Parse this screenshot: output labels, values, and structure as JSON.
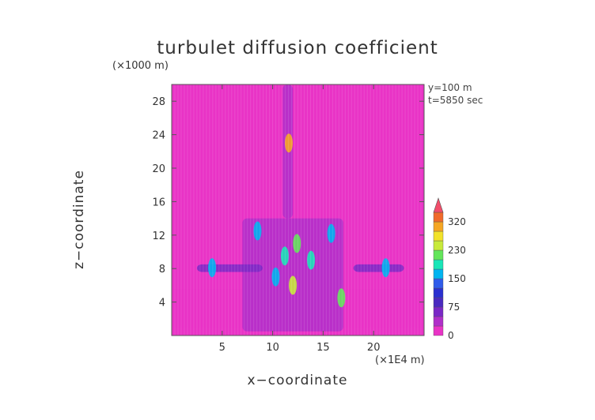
{
  "chart_data": {
    "type": "heatmap",
    "title": "turbulet diffusion coefficient",
    "xlabel": "x−coordinate",
    "ylabel": "z−coordinate",
    "x_unit": "(×1E4 m)",
    "y_unit": "(×1000 m)",
    "annotations": [
      "y=100 m",
      "t=5850 sec"
    ],
    "x_ticks": [
      5,
      10,
      15,
      20
    ],
    "y_ticks": [
      4,
      8,
      12,
      16,
      20,
      24,
      28
    ],
    "xlim": [
      0,
      25
    ],
    "ylim": [
      0,
      30
    ],
    "colorbar": {
      "tick_labels": [
        "0",
        "75",
        "150",
        "230",
        "320"
      ],
      "levels": [
        0,
        25,
        50,
        75,
        100,
        125,
        150,
        175,
        200,
        230,
        260,
        290,
        320,
        350
      ],
      "colors": [
        "#e933c6",
        "#b02fc9",
        "#7a28c6",
        "#4a2ac0",
        "#2a30d0",
        "#2f5cea",
        "#00b4f0",
        "#19e6b8",
        "#63e65a",
        "#c8ea3a",
        "#f2e22a",
        "#f5a623",
        "#f06a2a",
        "#f24d6a"
      ],
      "extend": "max"
    },
    "background_value": 0,
    "regions": [
      {
        "x": [
          0,
          25
        ],
        "z": [
          1,
          5.5
        ],
        "value": 12
      },
      {
        "x": [
          7,
          17
        ],
        "z": [
          0.5,
          14
        ],
        "value": 45
      },
      {
        "x": [
          2.5,
          9
        ],
        "z": [
          7.6,
          8.5
        ],
        "value": 60
      },
      {
        "x": [
          18,
          23
        ],
        "z": [
          7.6,
          8.5
        ],
        "value": 60
      },
      {
        "x": [
          11,
          12
        ],
        "z": [
          14,
          30
        ],
        "value": 40
      }
    ],
    "hotspots": [
      {
        "x": 11.2,
        "z": 9.5,
        "value": 180
      },
      {
        "x": 12.4,
        "z": 11.0,
        "value": 210
      },
      {
        "x": 10.3,
        "z": 7.0,
        "value": 160
      },
      {
        "x": 13.8,
        "z": 9.0,
        "value": 190
      },
      {
        "x": 12.0,
        "z": 6.0,
        "value": 230
      },
      {
        "x": 4.0,
        "z": 8.1,
        "value": 150
      },
      {
        "x": 21.2,
        "z": 8.1,
        "value": 150
      },
      {
        "x": 8.5,
        "z": 12.5,
        "value": 170
      },
      {
        "x": 15.8,
        "z": 12.2,
        "value": 150
      },
      {
        "x": 16.8,
        "z": 4.5,
        "value": 200
      },
      {
        "x": 11.6,
        "z": 23.0,
        "value": 300
      }
    ]
  }
}
